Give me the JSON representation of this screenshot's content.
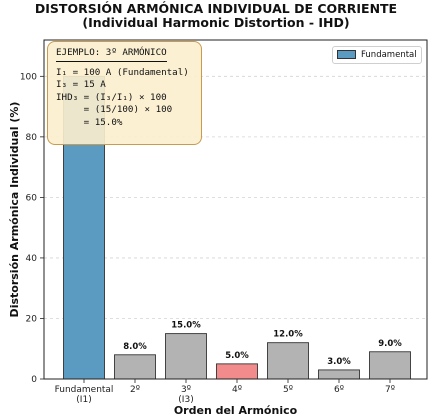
{
  "title_line1": "DISTORSIÓN ARMÓNICA INDIVIDUAL DE CORRIENTE",
  "title_line2": "(Individual Harmonic Distortion - IHD)",
  "chart_data": {
    "type": "bar",
    "categories": [
      "Fundamental\n(I1)",
      "2º",
      "3º\n(I3)",
      "4º",
      "5º",
      "6º",
      "7º"
    ],
    "values": [
      100,
      8.0,
      15.0,
      5.0,
      12.0,
      3.0,
      9.0
    ],
    "data_labels": [
      null,
      "8.0%",
      "15.0%",
      "5.0%",
      "12.0%",
      "3.0%",
      "9.0%"
    ],
    "bar_colors": [
      "#5b9bc2",
      "#b3b3b3",
      "#b3b3b3",
      "#f28b8b",
      "#b3b3b3",
      "#b3b3b3",
      "#b3b3b3"
    ],
    "label_colors": [
      "#111111",
      "#111111",
      "#8b1a1a",
      "#111111",
      "#111111",
      "#111111",
      "#111111"
    ],
    "xlabel": "Orden del Armónico",
    "ylabel": "Distorsión Armónica Individual (%)",
    "ylim": [
      0,
      112
    ],
    "yticks": [
      0,
      20,
      40,
      60,
      80,
      100
    ],
    "grid": "horizontal dashed",
    "legend": {
      "position": "top-right",
      "entries": [
        {
          "label": "Fundamental",
          "color": "#5b9bc2"
        }
      ]
    }
  },
  "annotation": {
    "heading": "EJEMPLO: 3º ARMÓNICO",
    "line1": "I₁ = 100 A (Fundamental)",
    "line2": "I₃ = 15 A",
    "line3": "IHD₃ = (I₃/I₁) × 100",
    "line4": "     = (15/100) × 100",
    "line5": "     = 15.0%"
  }
}
